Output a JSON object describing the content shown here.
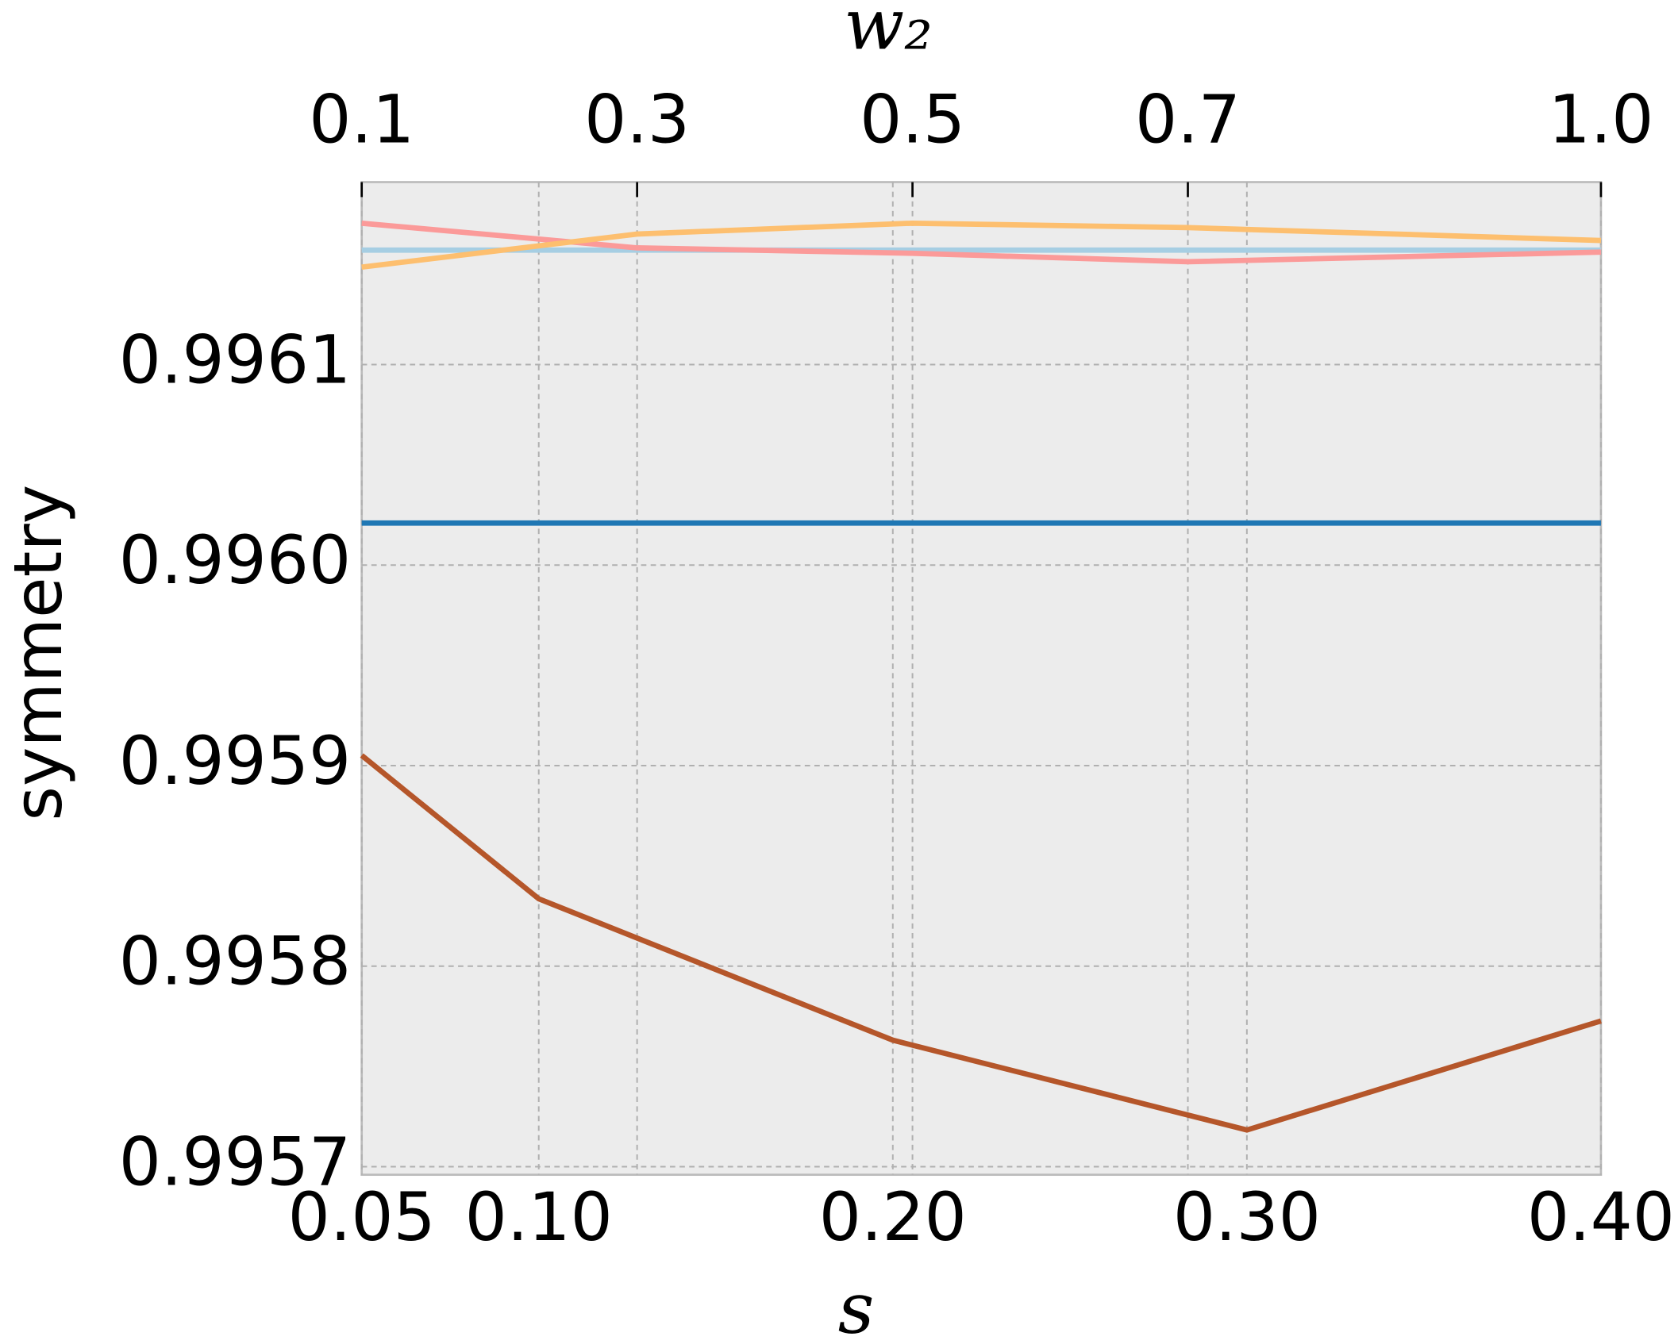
{
  "chart_data": {
    "type": "line",
    "xlabel": "s",
    "x2label": "w₂",
    "ylabel": "symmetry",
    "xlim": [
      0.05,
      0.4
    ],
    "xticks": [
      0.05,
      {
        "value": 0.1,
        "label": "0.10"
      },
      {
        "value": 0.2,
        "label": "0.20"
      },
      {
        "value": 0.3,
        "label": "0.30"
      },
      {
        "value": 0.4,
        "label": "0.40"
      }
    ],
    "x2lim": [
      0.1,
      1.0
    ],
    "x2ticks": [
      0.1,
      0.3,
      0.5,
      0.7,
      {
        "value": 1.0,
        "label": "1.0"
      }
    ],
    "ylim": [
      0.995696,
      0.996191
    ],
    "yticks": [
      {
        "value": 0.9957,
        "label": "0.9957"
      },
      {
        "value": 0.9958,
        "label": "0.9958"
      },
      {
        "value": 0.9959,
        "label": "0.9959"
      },
      {
        "value": 0.996,
        "label": "0.9960"
      },
      {
        "value": 0.9961,
        "label": "0.9961"
      }
    ],
    "grid": true,
    "series": [
      {
        "color": "#b5562a",
        "axis": "x",
        "x": [
          0.05,
          0.1,
          0.2,
          0.3,
          0.4
        ],
        "values": [
          0.9959051,
          0.9958336,
          0.9957631,
          0.9957183,
          0.9957727
        ]
      },
      {
        "color": "#1f77b4",
        "axis": "x",
        "x": [
          0.05,
          0.4
        ],
        "values": [
          0.996021,
          0.996021
        ]
      },
      {
        "color": "#a6cee3",
        "axis": "x",
        "x": [
          0.05,
          0.4
        ],
        "values": [
          0.9961571,
          0.9961571
        ]
      },
      {
        "color": "#fb9a99",
        "axis": "x2",
        "x": [
          0.1,
          0.3,
          0.5,
          0.7,
          1.0
        ],
        "values": [
          0.9961705,
          0.9961582,
          0.9961555,
          0.9961513,
          0.9961561
        ]
      },
      {
        "color": "#fdbf6f",
        "axis": "x2",
        "x": [
          0.1,
          0.3,
          0.5,
          0.7,
          1.0
        ],
        "values": [
          0.9961486,
          0.9961651,
          0.9961705,
          0.9961683,
          0.9961619
        ]
      }
    ]
  }
}
